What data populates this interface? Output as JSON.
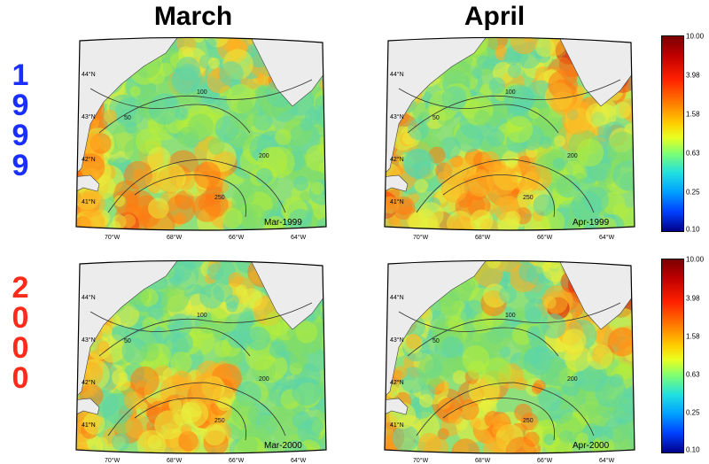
{
  "columns": [
    "March",
    "April"
  ],
  "years": [
    {
      "digits": [
        "1",
        "9",
        "9",
        "9"
      ],
      "color": "#1a2fff"
    },
    {
      "digits": [
        "2",
        "0",
        "0",
        "0"
      ],
      "color": "#ff2a1a"
    }
  ],
  "panels": [
    {
      "label": "Mar-1999"
    },
    {
      "label": "Apr-1999"
    },
    {
      "label": "Mar-2000"
    },
    {
      "label": "Apr-2000"
    }
  ],
  "lat_labels": [
    "44°N",
    "43°N",
    "42°N",
    "41°N"
  ],
  "lon_labels": [
    "70°W",
    "68°W",
    "66°W",
    "64°W"
  ],
  "contour_labels": [
    "50",
    "100",
    "200",
    "250"
  ],
  "colorbar": {
    "ticks": [
      "10.00",
      "3.98",
      "1.58",
      "0.63",
      "0.25",
      "0.10"
    ],
    "scale": "log"
  }
}
